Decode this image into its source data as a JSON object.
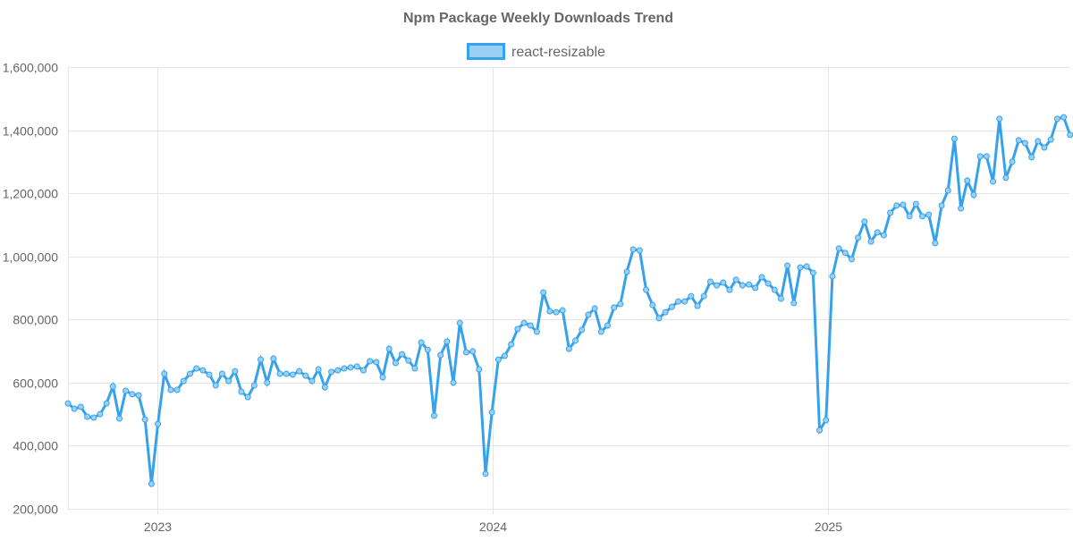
{
  "chart_data": {
    "type": "line",
    "title": "Npm Package Weekly Downloads Trend",
    "xlabel": "",
    "ylabel": "",
    "legend": {
      "placement": "top-center",
      "entries": [
        "react-resizable"
      ]
    },
    "grid": true,
    "colors": {
      "line": "#36A2EB",
      "fill": "#9BD0F5",
      "grid": "#e5e5e5",
      "text": "#666666"
    },
    "ylim": [
      200000,
      1600000
    ],
    "y_ticks": [
      200000,
      400000,
      600000,
      800000,
      1000000,
      1200000,
      1400000,
      1600000
    ],
    "y_tick_labels": [
      "200,000",
      "400,000",
      "600,000",
      "800,000",
      "1,000,000",
      "1,200,000",
      "1,400,000",
      "1,600,000"
    ],
    "xlim": [
      2022.733,
      2025.72
    ],
    "x_ticks": [
      2023,
      2024,
      2025
    ],
    "x_tick_labels": [
      "2023",
      "2024",
      "2025"
    ],
    "x_start": 2022.733,
    "x_step": 0.01916,
    "series": [
      {
        "name": "react-resizable",
        "values": [
          534000,
          517000,
          523000,
          492000,
          489000,
          500000,
          534000,
          588000,
          486000,
          574000,
          563000,
          560000,
          483000,
          279000,
          469000,
          628000,
          577000,
          577000,
          605000,
          628000,
          645000,
          639000,
          625000,
          591000,
          628000,
          605000,
          636000,
          571000,
          554000,
          591000,
          673000,
          600000,
          676000,
          628000,
          628000,
          625000,
          636000,
          622000,
          605000,
          642000,
          585000,
          634000,
          639000,
          645000,
          648000,
          651000,
          639000,
          668000,
          665000,
          617000,
          707000,
          662000,
          690000,
          670000,
          645000,
          727000,
          704000,
          495000,
          687000,
          730000,
          600000,
          789000,
          696000,
          699000,
          642000,
          311000,
          506000,
          673000,
          685000,
          721000,
          770000,
          789000,
          781000,
          761000,
          886000,
          826000,
          823000,
          829000,
          707000,
          733000,
          767000,
          815000,
          835000,
          761000,
          781000,
          838000,
          849000,
          951000,
          1022000,
          1019000,
          894000,
          846000,
          804000,
          823000,
          840000,
          857000,
          857000,
          874000,
          843000,
          874000,
          920000,
          908000,
          917000,
          894000,
          926000,
          908000,
          911000,
          900000,
          934000,
          914000,
          894000,
          866000,
          971000,
          852000,
          965000,
          968000,
          948000,
          449000,
          481000,
          937000,
          1025000,
          1011000,
          991000,
          1059000,
          1110000,
          1047000,
          1076000,
          1067000,
          1138000,
          1161000,
          1164000,
          1127000,
          1166000,
          1127000,
          1132000,
          1042000,
          1161000,
          1209000,
          1373000,
          1152000,
          1240000,
          1195000,
          1317000,
          1317000,
          1237000,
          1436000,
          1249000,
          1300000,
          1368000,
          1359000,
          1314000,
          1365000,
          1345000,
          1370000,
          1436000,
          1441000,
          1385000
        ]
      }
    ]
  }
}
